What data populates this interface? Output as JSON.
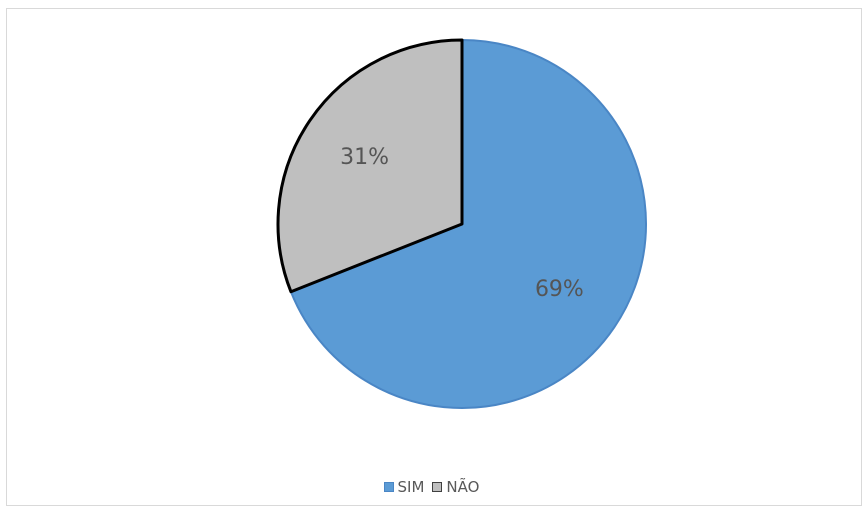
{
  "chart_data": {
    "type": "pie",
    "categories": [
      "SIM",
      "NÃO"
    ],
    "values": [
      69,
      31
    ],
    "labels": [
      "69%",
      "31%"
    ],
    "colors": [
      "#5b9bd5",
      "#bfbfbf"
    ],
    "outline_colors": [
      "#4a86c5",
      "#000000"
    ],
    "start_angle_deg": 0,
    "direction": "clockwise",
    "legend": "bottom"
  }
}
